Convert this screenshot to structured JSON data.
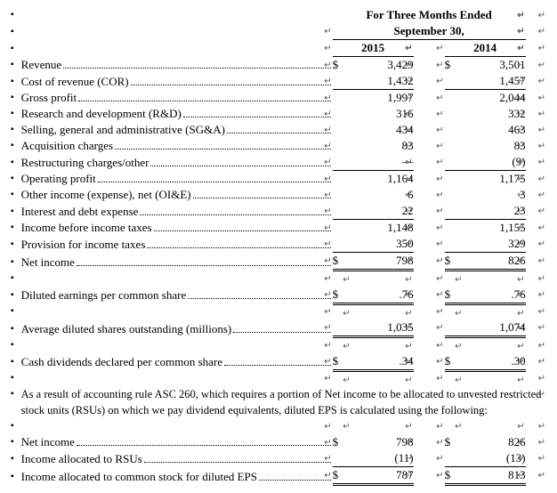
{
  "header": {
    "title": "For Three Months Ended",
    "subtitle": "September 30,",
    "year1": "2015",
    "year2": "2014"
  },
  "currency": "$",
  "rows": [
    {
      "label": "Revenue",
      "v1": "3,429",
      "v2": "3,501",
      "cur": true,
      "top_sec": false
    },
    {
      "label": "Cost of revenue (COR)",
      "v1": "1,432",
      "v2": "1,457",
      "under": true
    },
    {
      "label": "Gross profit",
      "v1": "1,997",
      "v2": "2,044"
    },
    {
      "label": "Research and development (R&D)",
      "v1": "316",
      "v2": "332"
    },
    {
      "label": "Selling, general and administrative (SG&A)",
      "v1": "434",
      "v2": "463"
    },
    {
      "label": "Acquisition charges",
      "v1": "83",
      "v2": "83"
    },
    {
      "label": "Restructuring charges/other",
      "v1": "—",
      "v2": "(9)",
      "under": true
    },
    {
      "label": "Operating profit",
      "v1": "1,164",
      "v2": "1,175"
    },
    {
      "label": "Other income (expense), net (OI&E)",
      "v1": "6",
      "v2": "3"
    },
    {
      "label": "Interest and debt expense",
      "v1": "22",
      "v2": "23",
      "under": true
    },
    {
      "label": "Income before income taxes",
      "v1": "1,148",
      "v2": "1,155"
    },
    {
      "label": "Provision for income taxes",
      "v1": "350",
      "v2": "329",
      "under": true
    },
    {
      "label": "Net income",
      "v1": "798",
      "v2": "826",
      "cur": true,
      "dbl": true
    }
  ],
  "rows2": [
    {
      "label": "Diluted earnings per common share",
      "v1": ".76",
      "v2": ".76",
      "cur": true,
      "dbl": true,
      "gap": true
    },
    {
      "label": "Average diluted shares outstanding (millions)",
      "v1": "1,035",
      "v2": "1,074",
      "dbl": true,
      "gap": true
    },
    {
      "label": "Cash dividends declared per common share",
      "v1": ".34",
      "v2": ".30",
      "cur": true,
      "dbl": true,
      "gap": true
    }
  ],
  "footnote": "As a result of accounting rule ASC 260, which requires a portion of Net income to be allocated to unvested restricted stock units (RSUs) on which we pay dividend equivalents, diluted EPS is calculated using the following:",
  "rows3": [
    {
      "label": "Net income",
      "v1": "798",
      "v2": "826",
      "cur": true
    },
    {
      "label": "Income allocated to RSUs",
      "v1": "(11)",
      "v2": "(13)",
      "under": true
    },
    {
      "label": "Income allocated to common stock for diluted EPS",
      "v1": "787",
      "v2": "813",
      "cur": true,
      "dbl": true
    }
  ]
}
